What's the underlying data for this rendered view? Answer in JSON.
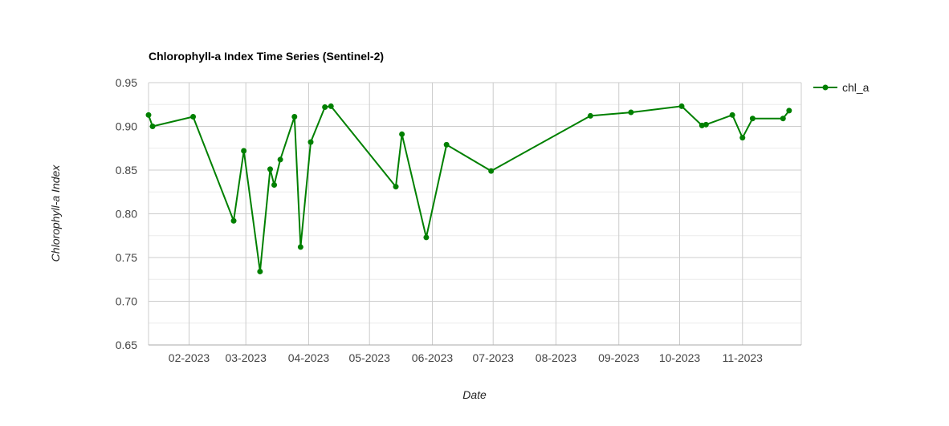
{
  "chart_data": {
    "type": "line",
    "title": "Chlorophyll-a Index Time Series (Sentinel-2)",
    "xlabel": "Date",
    "ylabel": "Chlorophyll-a Index",
    "ylim": [
      0.65,
      0.95
    ],
    "xlim": [
      "2023-01-12",
      "2023-11-30"
    ],
    "yticks": [
      "0.65",
      "0.70",
      "0.75",
      "0.80",
      "0.85",
      "0.90",
      "0.95"
    ],
    "xticks": [
      {
        "date": "2023-02-01",
        "label": "02-2023"
      },
      {
        "date": "2023-03-01",
        "label": "03-2023"
      },
      {
        "date": "2023-04-01",
        "label": "04-2023"
      },
      {
        "date": "2023-05-01",
        "label": "05-2023"
      },
      {
        "date": "2023-06-01",
        "label": "06-2023"
      },
      {
        "date": "2023-07-01",
        "label": "07-2023"
      },
      {
        "date": "2023-08-01",
        "label": "08-2023"
      },
      {
        "date": "2023-09-01",
        "label": "09-2023"
      },
      {
        "date": "2023-10-01",
        "label": "10-2023"
      },
      {
        "date": "2023-11-01",
        "label": "11-2023"
      }
    ],
    "grid": true,
    "legend_position": "top-right",
    "series": [
      {
        "name": "chl_a",
        "color": "#008000",
        "points": [
          {
            "x": "2023-01-12",
            "y": 0.913
          },
          {
            "x": "2023-01-14",
            "y": 0.9
          },
          {
            "x": "2023-02-03",
            "y": 0.911
          },
          {
            "x": "2023-02-23",
            "y": 0.792
          },
          {
            "x": "2023-02-28",
            "y": 0.872
          },
          {
            "x": "2023-03-08",
            "y": 0.734
          },
          {
            "x": "2023-03-13",
            "y": 0.851
          },
          {
            "x": "2023-03-15",
            "y": 0.833
          },
          {
            "x": "2023-03-18",
            "y": 0.862
          },
          {
            "x": "2023-03-25",
            "y": 0.911
          },
          {
            "x": "2023-03-28",
            "y": 0.762
          },
          {
            "x": "2023-04-02",
            "y": 0.882
          },
          {
            "x": "2023-04-09",
            "y": 0.922
          },
          {
            "x": "2023-04-12",
            "y": 0.923
          },
          {
            "x": "2023-05-14",
            "y": 0.831
          },
          {
            "x": "2023-05-17",
            "y": 0.891
          },
          {
            "x": "2023-05-29",
            "y": 0.773
          },
          {
            "x": "2023-06-08",
            "y": 0.879
          },
          {
            "x": "2023-06-30",
            "y": 0.849
          },
          {
            "x": "2023-08-18",
            "y": 0.912
          },
          {
            "x": "2023-09-07",
            "y": 0.916
          },
          {
            "x": "2023-10-02",
            "y": 0.923
          },
          {
            "x": "2023-10-12",
            "y": 0.901
          },
          {
            "x": "2023-10-14",
            "y": 0.902
          },
          {
            "x": "2023-10-27",
            "y": 0.913
          },
          {
            "x": "2023-11-01",
            "y": 0.887
          },
          {
            "x": "2023-11-06",
            "y": 0.909
          },
          {
            "x": "2023-11-21",
            "y": 0.909
          },
          {
            "x": "2023-11-24",
            "y": 0.918
          }
        ]
      }
    ]
  }
}
